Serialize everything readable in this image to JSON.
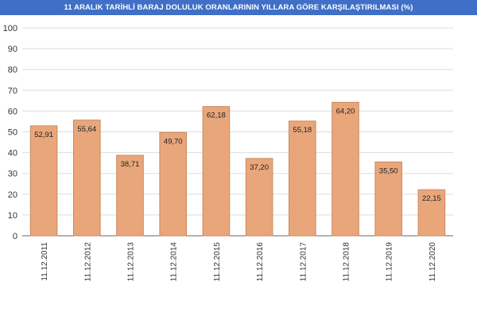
{
  "chart_data": {
    "type": "bar",
    "title": "11 ARALIK TARİHLİ BARAJ DOLULUK ORANLARININ YILLARA GÖRE KARŞILAŞTIRILMASI (%)",
    "categories": [
      "11.12.2011",
      "11.12.2012",
      "11.12.2013",
      "11.12.2014",
      "11.12.2015",
      "11.12.2016",
      "11.12.2017",
      "11.12.2018",
      "11.12.2019",
      "11.12.2020"
    ],
    "values": [
      52.91,
      55.64,
      38.71,
      49.7,
      62.18,
      37.2,
      55.18,
      64.2,
      35.5,
      22.15
    ],
    "value_labels": [
      "52,91",
      "55,64",
      "38,71",
      "49,70",
      "62,18",
      "37,20",
      "55,18",
      "64,20",
      "35,50",
      "22,15"
    ],
    "ylim": [
      0,
      100
    ],
    "yticks": [
      0,
      10,
      20,
      30,
      40,
      50,
      60,
      70,
      80,
      90,
      100
    ],
    "grid": true,
    "bar_color": "#e8a67a",
    "bar_border_color": "#c98a60",
    "title_bar_color": "#3f6fc6"
  }
}
